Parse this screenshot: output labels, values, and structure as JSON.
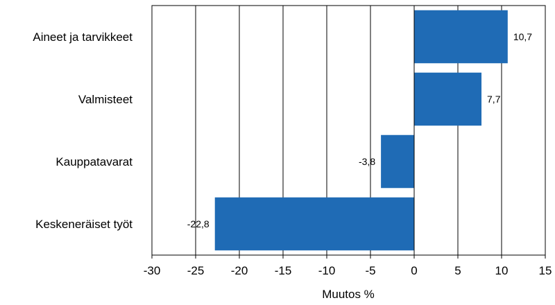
{
  "chart_data": {
    "type": "bar",
    "orientation": "horizontal",
    "categories": [
      "Aineet ja tarvikkeet",
      "Valmisteet",
      "Kauppatavarat",
      "Keskeneräiset työt"
    ],
    "values": [
      10.7,
      7.7,
      -3.8,
      -22.8
    ],
    "value_labels": [
      "10,7",
      "7,7",
      "-3,8",
      "-22,8"
    ],
    "title": "",
    "xlabel": "Muutos %",
    "ylabel": "",
    "xlim": [
      -30,
      15
    ],
    "xticks": [
      -30,
      -25,
      -20,
      -15,
      -10,
      -5,
      0,
      5,
      10,
      15
    ],
    "xtick_labels": [
      "-30",
      "-25",
      "-20",
      "-15",
      "-10",
      "-5",
      "0",
      "5",
      "10",
      "15"
    ],
    "grid": "vertical",
    "legend": "none",
    "colors": {
      "bar": "#1f6bb5",
      "grid": "#000000",
      "text": "#000000"
    }
  }
}
